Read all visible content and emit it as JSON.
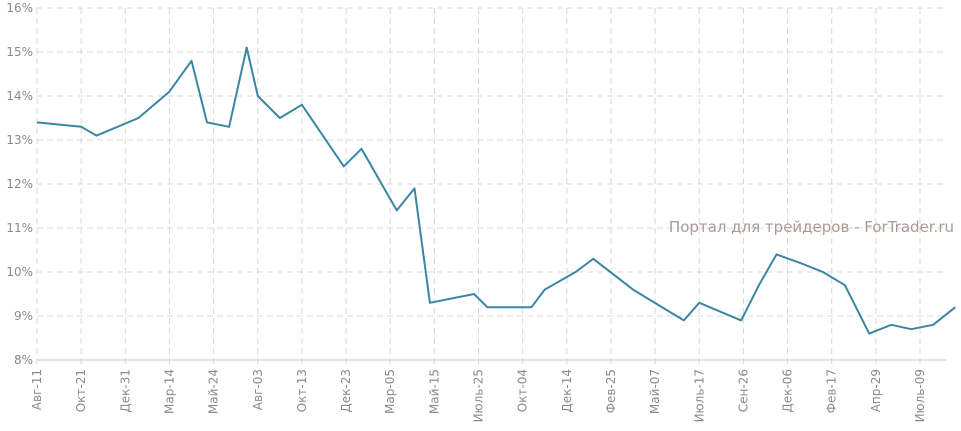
{
  "chart_data": {
    "type": "line",
    "title": "",
    "xlabel": "",
    "ylabel": "",
    "ylim": [
      8,
      16
    ],
    "y_ticks": [
      "8%",
      "9%",
      "10%",
      "11%",
      "12%",
      "13%",
      "14%",
      "15%",
      "16%"
    ],
    "x_tick_labels": [
      "Авг-11",
      "Окт-21",
      "Дек-31",
      "Мар-14",
      "Май-24",
      "Авг-03",
      "Окт-13",
      "Дек-23",
      "Мар-05",
      "Май-15",
      "Июль-25",
      "Окт-04",
      "Дек-14",
      "Фев-25",
      "Май-07",
      "Июль-17",
      "Сен-26",
      "Дек-06",
      "Фев-17",
      "Апр-29",
      "Июль-09"
    ],
    "grid": true,
    "color": "#3b86a3",
    "watermark": "Портал для трейдеров - ForTrader.ru",
    "series": [
      {
        "x": [
          0,
          1,
          1.35,
          2.3,
          3,
          3.5,
          3.85,
          4.35,
          4.75,
          5,
          5.5,
          6,
          6.95,
          7.35,
          8.15,
          8.55,
          8.9,
          9.9,
          10.2,
          11.2,
          11.5,
          12.2,
          12.6,
          13.5,
          14.65,
          15,
          15.95,
          16.35,
          16.75,
          17.3,
          17.8,
          18.3,
          18.85,
          19.35,
          19.8,
          20.3,
          20.8
        ],
        "values": [
          13.4,
          13.3,
          13.1,
          13.5,
          14.1,
          14.8,
          13.4,
          13.3,
          15.1,
          14.0,
          13.5,
          13.8,
          12.4,
          12.8,
          11.4,
          11.9,
          9.3,
          9.5,
          9.2,
          9.2,
          9.6,
          10.0,
          10.3,
          9.6,
          8.9,
          9.3,
          8.9,
          9.7,
          10.4,
          10.2,
          10.0,
          9.7,
          8.6,
          8.8,
          8.7,
          8.8,
          9.2
        ]
      }
    ]
  }
}
